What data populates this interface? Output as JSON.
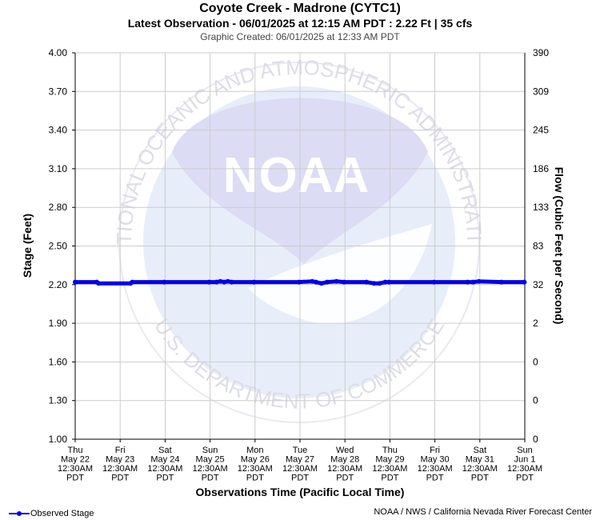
{
  "header": {
    "title": "Coyote Creek - Madrone (CYTC1)",
    "subtitle": "Latest Observation - 06/01/2025 at 12:15 AM PDT : 2.22 Ft | 35 cfs",
    "created": "Graphic Created: 06/01/2025 at 12:33 AM PDT"
  },
  "footer": {
    "legend_label": "Observed Stage",
    "credit": "NOAA / NWS / California Nevada River Forecast Center"
  },
  "watermark": {
    "logo_text": "NOAA",
    "ring_top": "NATIONAL OCEANIC AND ATMOSPHERIC ADMINISTRATION",
    "ring_bottom": "U.S. DEPARTMENT OF COMMERCE"
  },
  "colors": {
    "series": "#0000ee",
    "grid": "#cccccc",
    "watermark": "#e7eef9",
    "watermark_dark": "#dcdcf4"
  },
  "chart_data": {
    "type": "line",
    "xlabel": "Observations Time (Pacific Local Time)",
    "ylabel": "Stage (Feet)",
    "y2label": "Flow (Cubic Feet per Second)",
    "ylim": [
      1.0,
      4.0
    ],
    "yticks": [
      "4.00",
      "3.70",
      "3.40",
      "3.10",
      "2.80",
      "2.50",
      "2.20",
      "1.90",
      "1.60",
      "1.30",
      "1.00"
    ],
    "y2ticks": [
      "390",
      "309",
      "245",
      "186",
      "133",
      "83",
      "32",
      "2",
      "0",
      "0",
      "0"
    ],
    "xlim": [
      "2025-05-22T00:30",
      "2025-06-01T00:30"
    ],
    "xticks": [
      [
        "Thu",
        "May 22",
        "12:30AM",
        "PDT"
      ],
      [
        "Fri",
        "May 23",
        "12:30AM",
        "PDT"
      ],
      [
        "Sat",
        "May 24",
        "12:30AM",
        "PDT"
      ],
      [
        "Sun",
        "May 25",
        "12:30AM",
        "PDT"
      ],
      [
        "Mon",
        "May 26",
        "12:30AM",
        "PDT"
      ],
      [
        "Tue",
        "May 27",
        "12:30AM",
        "PDT"
      ],
      [
        "Wed",
        "May 28",
        "12:30AM",
        "PDT"
      ],
      [
        "Thu",
        "May 29",
        "12:30AM",
        "PDT"
      ],
      [
        "Fri",
        "May 30",
        "12:30AM",
        "PDT"
      ],
      [
        "Sat",
        "May 31",
        "12:30AM",
        "PDT"
      ],
      [
        "Sun",
        "Jun 1",
        "12:30AM",
        "PDT"
      ]
    ],
    "grid": true,
    "legend": "bottom-left",
    "series": [
      {
        "name": "Observed Stage",
        "x": [
          "2025-05-22T00:30",
          "2025-05-22T12:00",
          "2025-05-22T13:00",
          "2025-05-23T06:00",
          "2025-05-23T07:00",
          "2025-05-24T00:00",
          "2025-05-25T00:00",
          "2025-05-25T04:00",
          "2025-05-25T06:00",
          "2025-05-25T08:00",
          "2025-05-25T10:00",
          "2025-05-25T12:00",
          "2025-05-26T00:00",
          "2025-05-27T00:00",
          "2025-05-27T07:00",
          "2025-05-27T09:00",
          "2025-05-27T12:00",
          "2025-05-27T15:00",
          "2025-05-27T20:00",
          "2025-05-28T00:00",
          "2025-05-28T12:00",
          "2025-05-28T16:00",
          "2025-05-28T19:00",
          "2025-05-28T22:00",
          "2025-05-29T00:00",
          "2025-05-30T00:00",
          "2025-05-30T18:00",
          "2025-05-30T21:00",
          "2025-05-31T00:00",
          "2025-05-31T12:00",
          "2025-06-01T00:15"
        ],
        "y": [
          2.22,
          2.22,
          2.21,
          2.21,
          2.22,
          2.22,
          2.22,
          2.22,
          2.225,
          2.22,
          2.225,
          2.22,
          2.22,
          2.22,
          2.225,
          2.22,
          2.21,
          2.22,
          2.225,
          2.22,
          2.22,
          2.21,
          2.21,
          2.22,
          2.22,
          2.22,
          2.22,
          2.22,
          2.225,
          2.22,
          2.22
        ]
      }
    ]
  }
}
